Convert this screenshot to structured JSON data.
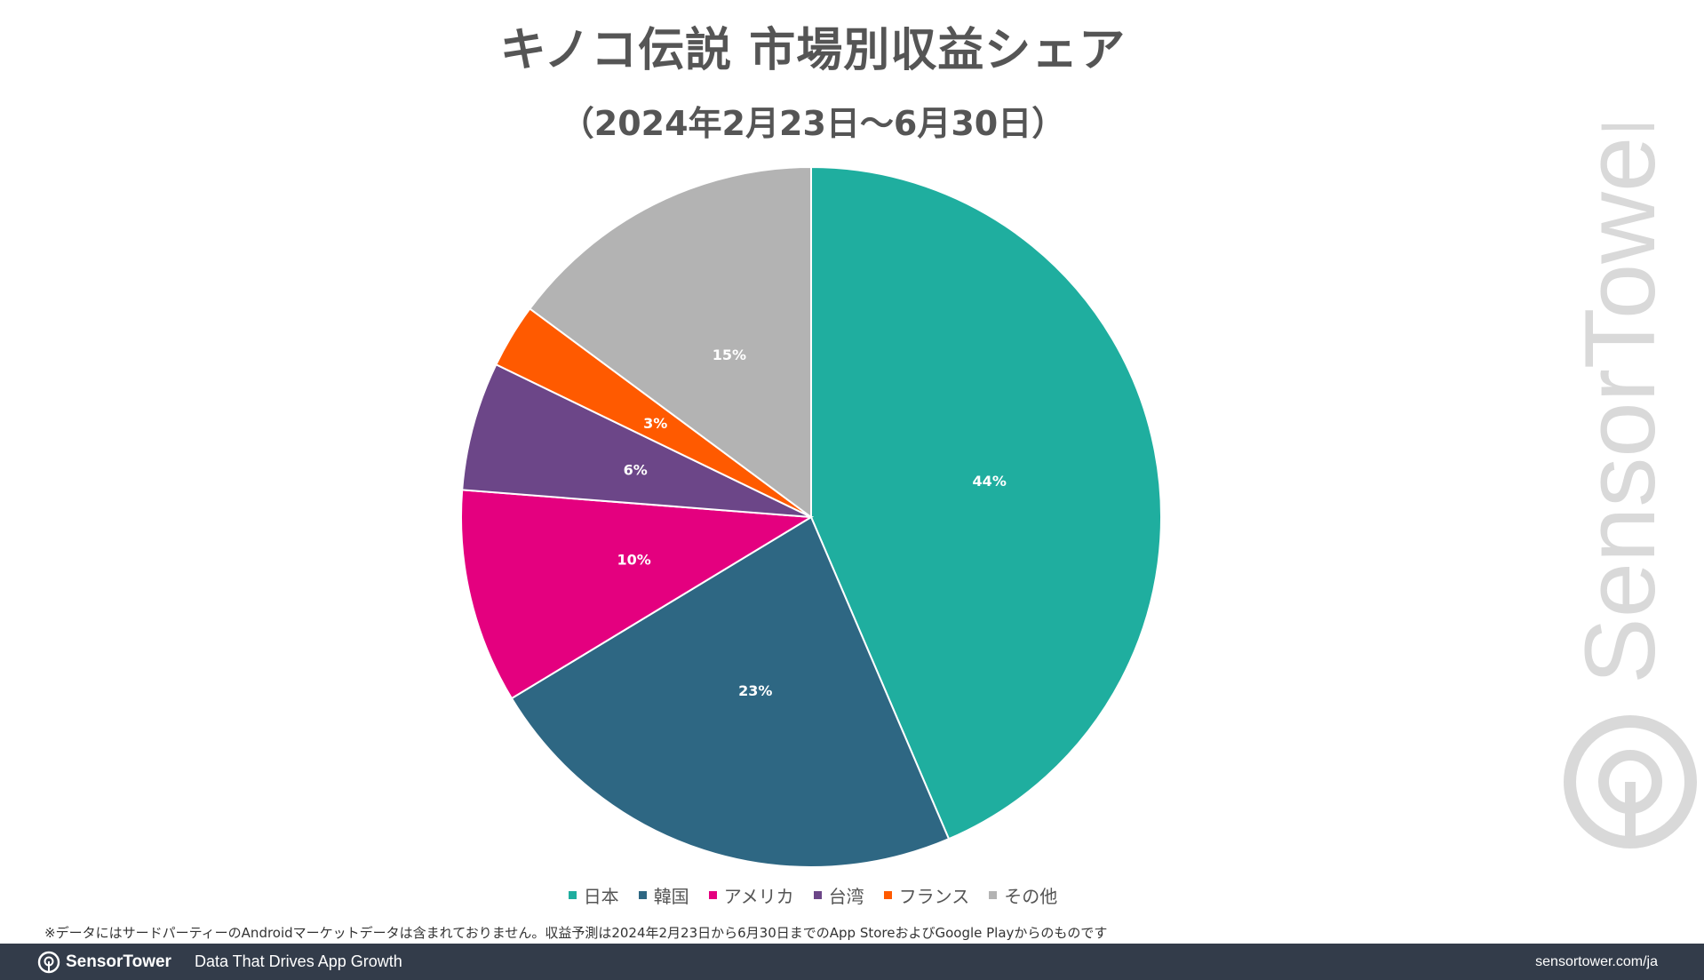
{
  "title": "キノコ伝説 市場別収益シェア",
  "subtitle": "（2024年2月23日～6月30日）",
  "chart_data": {
    "type": "pie",
    "title": "キノコ伝説 市場別収益シェア",
    "subtitle": "（2024年2月23日～6月30日）",
    "categories": [
      "日本",
      "韓国",
      "アメリカ",
      "台湾",
      "フランス",
      "その他"
    ],
    "values": [
      44,
      23,
      10,
      6,
      3,
      15
    ],
    "labels": [
      "44%",
      "23%",
      "10%",
      "6%",
      "3%",
      "15%"
    ],
    "colors": [
      "#1fae9f",
      "#2e6783",
      "#e4007f",
      "#6c4688",
      "#ff5a00",
      "#b3b3b3"
    ],
    "legend_position": "bottom"
  },
  "footnote": "※データにはサードパーティーのAndroidマーケットデータは含まれておりません。収益予測は2024年2月23日から6月30日までのApp StoreおよびGoogle Playからのものです",
  "watermark": "SensorTower",
  "footer": {
    "brand": "SensorTower",
    "tagline": "Data That Drives App Growth",
    "url": "sensortower.com/ja"
  }
}
